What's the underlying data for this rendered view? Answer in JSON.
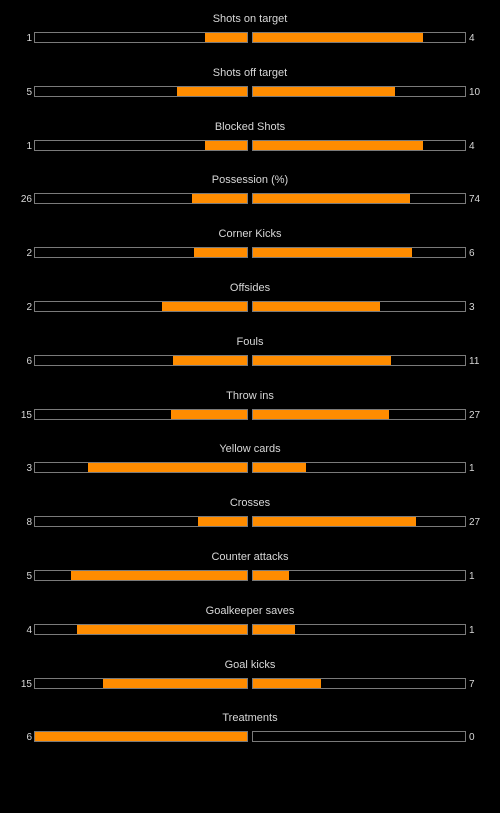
{
  "theme": {
    "background": "#000000",
    "bar_fill": "#ff8c00",
    "bar_border": "#7a7a7a",
    "text": "#d8d8d8"
  },
  "stats": [
    {
      "label": "Shots on target",
      "home": "1",
      "away": "4",
      "home_fill": 0.2,
      "away_fill": 0.8
    },
    {
      "label": "Shots off target",
      "home": "5",
      "away": "10",
      "home_fill": 0.33,
      "away_fill": 0.67
    },
    {
      "label": "Blocked Shots",
      "home": "1",
      "away": "4",
      "home_fill": 0.2,
      "away_fill": 0.8
    },
    {
      "label": "Possession (%)",
      "home": "26",
      "away": "74",
      "home_fill": 0.26,
      "away_fill": 0.74
    },
    {
      "label": "Corner Kicks",
      "home": "2",
      "away": "6",
      "home_fill": 0.25,
      "away_fill": 0.75
    },
    {
      "label": "Offsides",
      "home": "2",
      "away": "3",
      "home_fill": 0.4,
      "away_fill": 0.6
    },
    {
      "label": "Fouls",
      "home": "6",
      "away": "11",
      "home_fill": 0.35,
      "away_fill": 0.65
    },
    {
      "label": "Throw ins",
      "home": "15",
      "away": "27",
      "home_fill": 0.36,
      "away_fill": 0.64
    },
    {
      "label": "Yellow cards",
      "home": "3",
      "away": "1",
      "home_fill": 0.75,
      "away_fill": 0.25
    },
    {
      "label": "Crosses",
      "home": "8",
      "away": "27",
      "home_fill": 0.23,
      "away_fill": 0.77
    },
    {
      "label": "Counter attacks",
      "home": "5",
      "away": "1",
      "home_fill": 0.83,
      "away_fill": 0.17
    },
    {
      "label": "Goalkeeper saves",
      "home": "4",
      "away": "1",
      "home_fill": 0.8,
      "away_fill": 0.2
    },
    {
      "label": "Goal kicks",
      "home": "15",
      "away": "7",
      "home_fill": 0.68,
      "away_fill": 0.32
    },
    {
      "label": "Treatments",
      "home": "6",
      "away": "0",
      "home_fill": 1.0,
      "away_fill": 0.0
    }
  ]
}
